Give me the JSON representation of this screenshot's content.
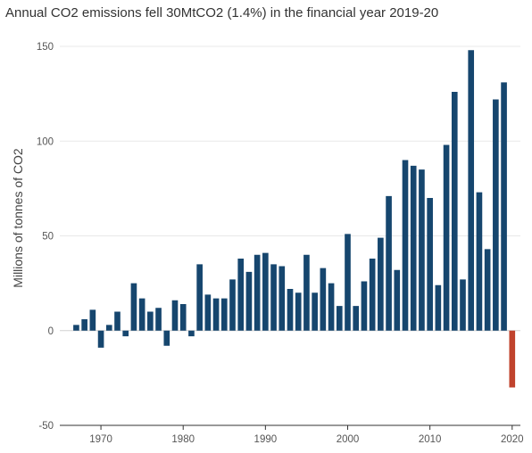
{
  "chart_data": {
    "type": "bar",
    "title": "Annual CO2 emissions fell 30MtCO2 (1.4%) in the financial year 2019-20",
    "xlabel": "",
    "ylabel": "Millions of tonnes of CO2",
    "ylim": [
      -50,
      150
    ],
    "xlim": [
      1965,
      2021
    ],
    "y_ticks": [
      "-50",
      "0",
      "50",
      "100",
      "150"
    ],
    "x_ticks": [
      "1970",
      "1980",
      "1990",
      "2000",
      "2010",
      "2020"
    ],
    "grid": true,
    "colors": {
      "positive": "#16466e",
      "highlight": "#c0432d",
      "grid": "#e8e8e8"
    },
    "x": [
      1967,
      1968,
      1969,
      1970,
      1971,
      1972,
      1973,
      1974,
      1975,
      1976,
      1977,
      1978,
      1979,
      1980,
      1981,
      1982,
      1983,
      1984,
      1985,
      1986,
      1987,
      1988,
      1989,
      1990,
      1991,
      1992,
      1993,
      1994,
      1995,
      1996,
      1997,
      1998,
      1999,
      2000,
      2001,
      2002,
      2003,
      2004,
      2005,
      2006,
      2007,
      2008,
      2009,
      2010,
      2011,
      2012,
      2013,
      2014,
      2015,
      2016,
      2017,
      2018,
      2019,
      2020
    ],
    "values": [
      3,
      6,
      11,
      -9,
      3,
      10,
      -3,
      25,
      17,
      10,
      12,
      -8,
      16,
      14,
      -3,
      35,
      19,
      17,
      17,
      27,
      38,
      31,
      40,
      41,
      35,
      34,
      22,
      20,
      40,
      20,
      33,
      25,
      13,
      51,
      13,
      26,
      38,
      49,
      71,
      32,
      90,
      87,
      85,
      70,
      24,
      98,
      126,
      27,
      148,
      73,
      43,
      122,
      131,
      -30
    ],
    "highlight_last": true
  }
}
